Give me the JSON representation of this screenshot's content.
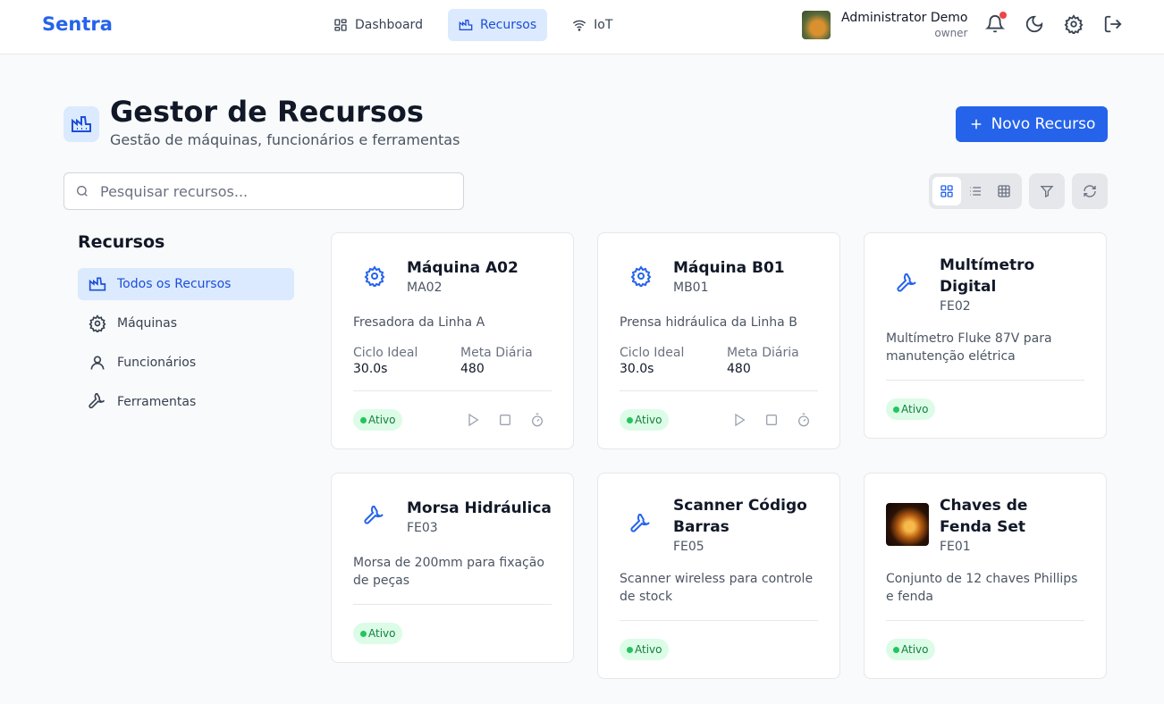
{
  "header": {
    "brand": "Sentra",
    "nav": [
      {
        "label": "Dashboard",
        "icon": "layout-grid-icon"
      },
      {
        "label": "Recursos",
        "icon": "factory-icon",
        "active": true
      },
      {
        "label": "IoT",
        "icon": "wifi-icon"
      }
    ],
    "user": {
      "name": "Administrator Demo",
      "role": "owner"
    },
    "notification_dot_color": "#ef4444"
  },
  "page": {
    "title": "Gestor de Recursos",
    "subtitle": "Gestão de máquinas, funcionários e ferramentas",
    "new_button": "Novo Recurso",
    "search_placeholder": "Pesquisar recursos...",
    "search_value": "",
    "active_view": "grid"
  },
  "sidebar": {
    "title": "Recursos",
    "items": [
      {
        "label": "Todos os Recursos",
        "active": true
      },
      {
        "label": "Máquinas"
      },
      {
        "label": "Funcionários"
      },
      {
        "label": "Ferramentas"
      }
    ]
  },
  "labels": {
    "ciclo": "Ciclo Ideal",
    "meta": "Meta Diária"
  },
  "cards": [
    {
      "name": "Máquina A02",
      "code": "MA02",
      "desc": "Fresadora da Linha A",
      "type": "machine",
      "ciclo": "30.0s",
      "meta": "480",
      "status": "Ativo"
    },
    {
      "name": "Máquina B01",
      "code": "MB01",
      "desc": "Prensa hidráulica da Linha B",
      "type": "machine",
      "ciclo": "30.0s",
      "meta": "480",
      "status": "Ativo"
    },
    {
      "name": "Multímetro Digital",
      "code": "FE02",
      "desc": "Multímetro Fluke 87V para manutenção elétrica",
      "type": "tool",
      "status": "Ativo"
    },
    {
      "name": "Morsa Hidráulica",
      "code": "FE03",
      "desc": "Morsa de 200mm para fixação de peças",
      "type": "tool",
      "status": "Ativo"
    },
    {
      "name": "Scanner Código Barras",
      "code": "FE05",
      "desc": "Scanner wireless para controle de stock",
      "type": "tool",
      "status": "Ativo"
    },
    {
      "name": "Chaves de Fenda Set",
      "code": "FE01",
      "desc": "Conjunto de 12 chaves Phillips e fenda",
      "type": "image",
      "status": "Ativo"
    }
  ],
  "colors": {
    "accent": "#2563eb",
    "active_bg": "#dbeafe",
    "status_bg": "#dcfce7",
    "status_text": "#15803d"
  }
}
